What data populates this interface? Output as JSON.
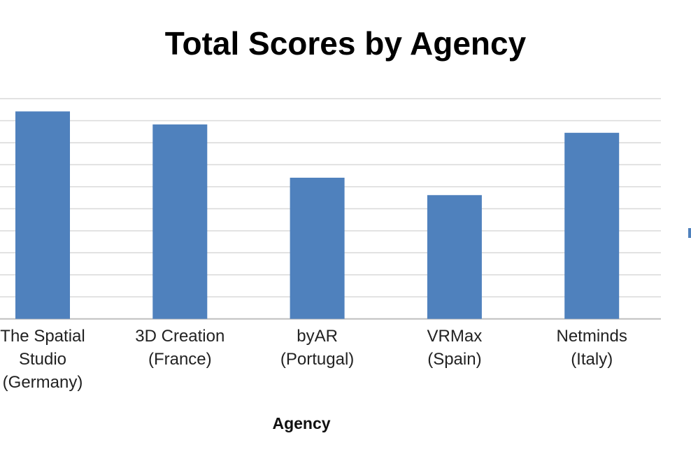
{
  "chart_data": {
    "type": "bar",
    "title": "Total Scores by Agency",
    "xlabel": "Agency",
    "ylabel": "",
    "categories": [
      [
        "The Spatial",
        "Studio",
        "(Germany)"
      ],
      [
        "3D Creation",
        "(France)"
      ],
      [
        "byAR",
        "(Portugal)"
      ],
      [
        "VRMax",
        "(Spain)"
      ],
      [
        "Netminds",
        "(Italy)"
      ]
    ],
    "values": [
      9.42,
      8.83,
      6.41,
      5.62,
      8.45
    ],
    "ylim": [
      0,
      10
    ],
    "grid": true,
    "legend": "right",
    "colors": {
      "bar": "#4f81bd",
      "grid": "#d9d9d9"
    }
  }
}
